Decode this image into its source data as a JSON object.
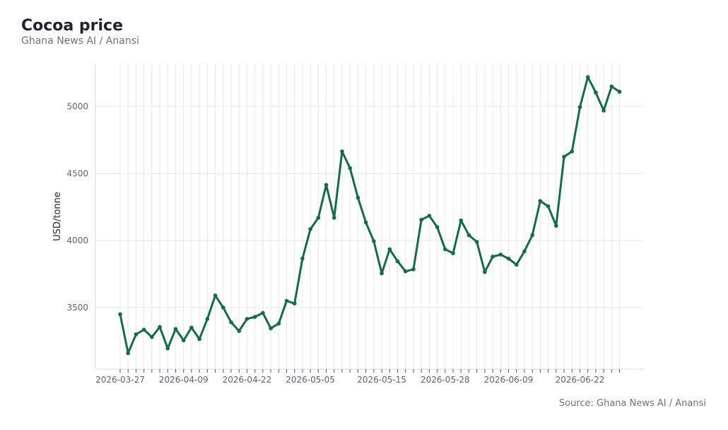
{
  "header": {
    "title": "Cocoa price",
    "subtitle": "Ghana News AI / Anansi"
  },
  "footer": {
    "source": "Source: Ghana News AI / Anansi"
  },
  "colors": {
    "line": "#17694e",
    "grid": "#e8e8e8",
    "axis": "#d9d9d9"
  },
  "chart_data": {
    "type": "line",
    "title": "Cocoa price",
    "subtitle": "Ghana News AI / Anansi",
    "xlabel": "",
    "ylabel": "USD/tonne",
    "ylim": [
      3040,
      5320
    ],
    "yticks": [
      3500,
      4000,
      4500,
      5000
    ],
    "grid": true,
    "x_tick_labels": [
      "2026-03-27",
      "2026-04-09",
      "2026-04-22",
      "2026-05-05",
      "2026-05-15",
      "2026-05-28",
      "2026-06-09",
      "2026-06-22"
    ],
    "x_tick_label_index": [
      0,
      8,
      16,
      24,
      33,
      41,
      49,
      58
    ],
    "series": [
      {
        "values": [
          3450,
          3160,
          3300,
          3335,
          3280,
          3355,
          3195,
          3340,
          3255,
          3350,
          3265,
          3415,
          3590,
          3500,
          3390,
          3325,
          3415,
          3430,
          3460,
          3345,
          3380,
          3550,
          3530,
          3865,
          4085,
          4170,
          4415,
          4170,
          4665,
          4540,
          4320,
          4135,
          3995,
          3755,
          3935,
          3845,
          3770,
          3785,
          4155,
          4185,
          4100,
          3935,
          3905,
          4150,
          4040,
          3990,
          3765,
          3880,
          3895,
          3865,
          3820,
          3920,
          4040,
          4295,
          4255,
          4110,
          4625,
          4665,
          4995,
          5220,
          5105,
          4970,
          5150,
          5110
        ]
      }
    ]
  }
}
